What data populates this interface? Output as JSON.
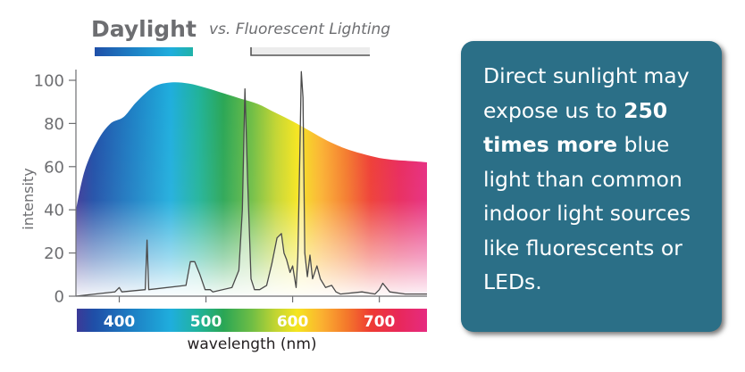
{
  "chart_data": {
    "type": "area",
    "title": "Daylight",
    "subtitle": "vs. Fluorescent Lighting",
    "xlabel": "wavelength (nm)",
    "ylabel": "intensity",
    "xlim": [
      350,
      755
    ],
    "ylim": [
      0,
      100
    ],
    "y_ticks": [
      "0",
      "20",
      "40",
      "60",
      "80",
      "100"
    ],
    "x_ticks": [
      "400",
      "500",
      "600",
      "700"
    ],
    "grid": false,
    "legend": "top",
    "series": [
      {
        "name": "Daylight",
        "style": "filled spectrum area",
        "x": [
          350,
          360,
          375,
          390,
          405,
          420,
          440,
          460,
          480,
          500,
          520,
          540,
          560,
          580,
          600,
          620,
          640,
          660,
          680,
          700,
          720,
          740,
          755
        ],
        "y": [
          40,
          58,
          72,
          80,
          83,
          90,
          97,
          99,
          98.5,
          96.5,
          94,
          91.5,
          89,
          85,
          81,
          76.5,
          72,
          68.5,
          66,
          64,
          63,
          62.5,
          62
        ]
      },
      {
        "name": "Fluorescent Lighting",
        "style": "outlined line",
        "x": [
          350,
          395,
          400,
          403,
          430,
          432,
          434,
          477,
          482,
          487,
          493,
          499,
          505,
          508,
          530,
          538,
          542,
          545,
          548,
          552,
          556,
          562,
          570,
          576,
          582,
          587,
          590,
          593,
          597,
          600,
          604,
          606,
          608,
          610,
          612,
          614,
          617,
          620,
          623,
          628,
          632,
          638,
          645,
          650,
          655,
          680,
          695,
          700,
          704,
          712,
          730,
          755
        ],
        "y": [
          0,
          2,
          4,
          2,
          3,
          26,
          3,
          5,
          16,
          16,
          10,
          3,
          3,
          2,
          4,
          12,
          40,
          96,
          55,
          8,
          3,
          3,
          5,
          15,
          27,
          29,
          20,
          17,
          11,
          14,
          4,
          18,
          60,
          104,
          92,
          20,
          9,
          19,
          8,
          14,
          8,
          4,
          5,
          2,
          1,
          2,
          1,
          3,
          6,
          2,
          1,
          1
        ]
      }
    ]
  },
  "callout": {
    "line1": "Direct sunlight may",
    "line2": "expose us to ",
    "line2_bold": "250",
    "line3_bold": "times more",
    "line3": " blue",
    "line4": "light than common",
    "line5": "indoor light sources",
    "line6": "like fluorescents or",
    "line7": "LEDs."
  }
}
